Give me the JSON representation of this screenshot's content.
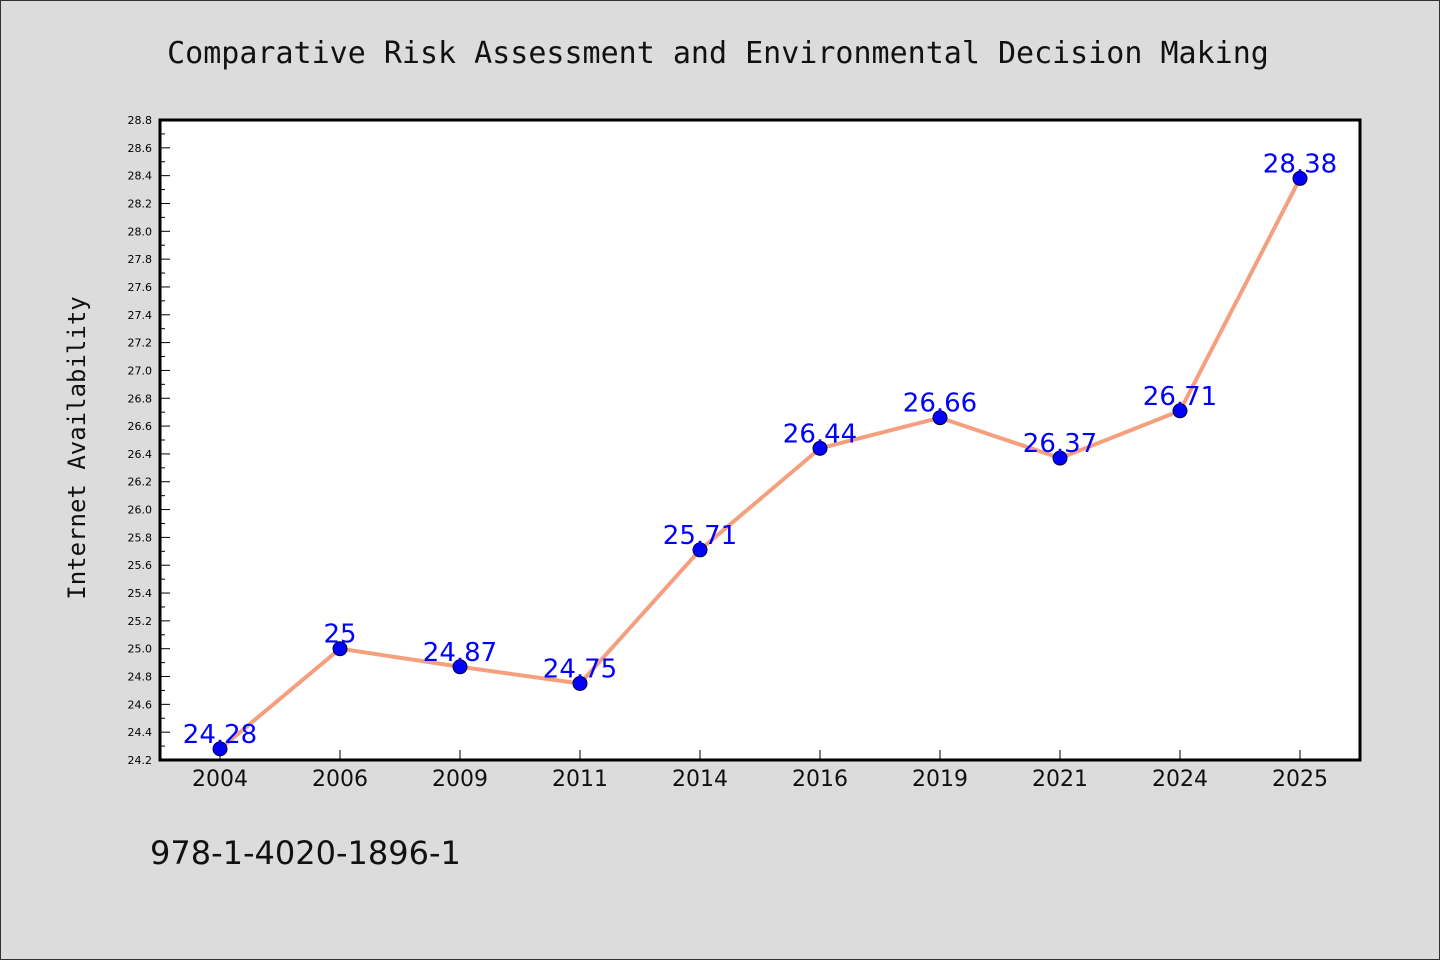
{
  "chart_data": {
    "type": "line",
    "title": "Comparative Risk Assessment and Environmental Decision Making",
    "ylabel": "Internet Availability",
    "xlabel": "",
    "categories": [
      "2004",
      "2006",
      "2009",
      "2011",
      "2014",
      "2016",
      "2019",
      "2021",
      "2024",
      "2025"
    ],
    "series": [
      {
        "values": [
          24.28,
          25,
          24.87,
          24.75,
          25.71,
          26.44,
          26.66,
          26.37,
          26.71,
          28.38
        ],
        "data_labels": [
          "24.28",
          "25",
          "24.87",
          "24.75",
          "25.71",
          "26.44",
          "26.66",
          "26.37",
          "26.71",
          "28.38"
        ],
        "line_color": "#f4a07e",
        "marker_color": "#0000ff"
      }
    ],
    "ylim": [
      24.2,
      28.8
    ],
    "yticks": [
      "24.2",
      "24.4",
      "24.6",
      "24.8",
      "25.0",
      "25.2",
      "25.4",
      "25.6",
      "25.8",
      "26.0",
      "26.2",
      "26.4",
      "26.6",
      "26.8",
      "27.0",
      "27.2",
      "27.4",
      "27.6",
      "27.8",
      "28.0",
      "28.2",
      "28.4",
      "28.6",
      "28.8"
    ],
    "grid": false,
    "legend": "none"
  },
  "footer_note": "978-1-4020-1896-1",
  "colors": {
    "background": "#dcdcdc",
    "plot_background": "#ffffff",
    "line": "#f4a07e",
    "marker": "#0000ff",
    "data_label": "#0000ff"
  }
}
